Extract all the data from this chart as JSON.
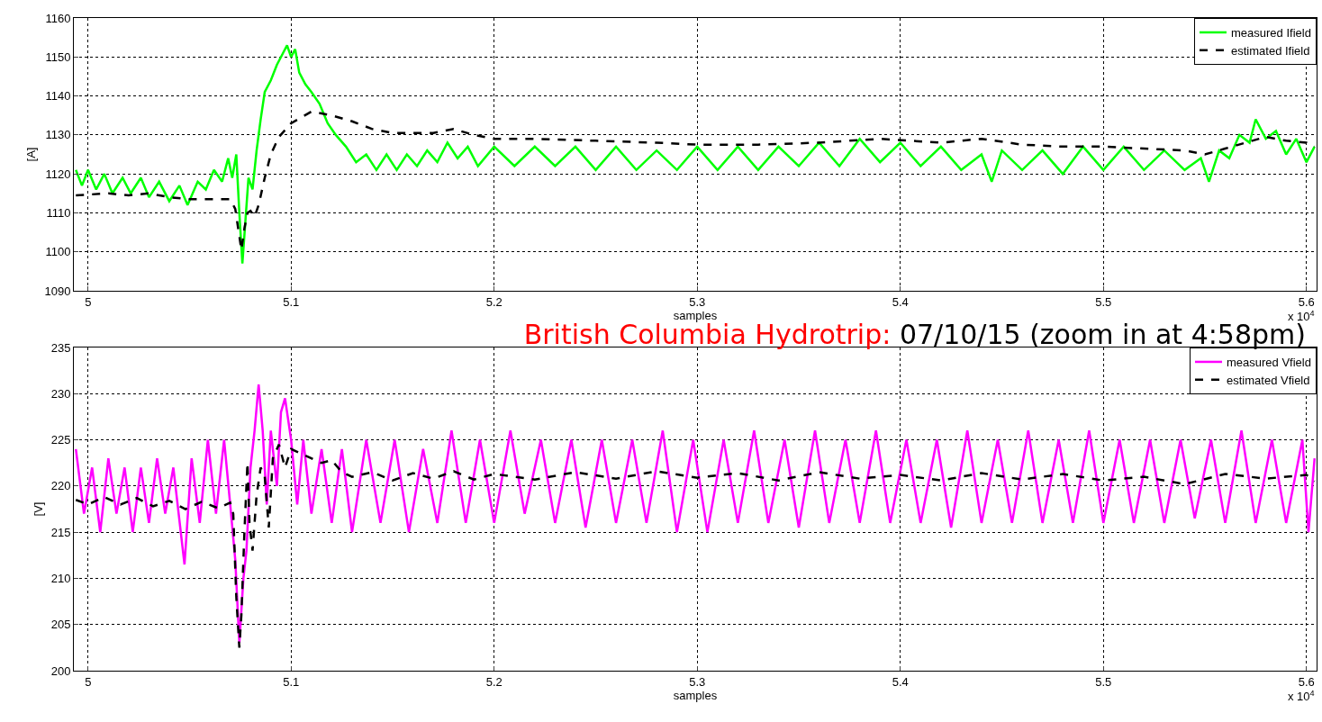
{
  "chart_data": [
    {
      "type": "line",
      "xlabel": "samples",
      "ylabel": "[A]",
      "annotations": [
        "x 10$^{4}$"
      ],
      "xlim": [
        4.993,
        5.605
      ],
      "xticks": [
        5,
        5.1,
        5.2,
        5.3,
        5.4,
        5.5,
        5.6
      ],
      "ylim": [
        1090,
        1160
      ],
      "yticks": [
        1090,
        1100,
        1110,
        1120,
        1130,
        1140,
        1150,
        1160
      ],
      "grid": true,
      "legend": "top right",
      "series": [
        {
          "name": "measured Ifield",
          "color": "#00ff00",
          "line_style": "solid",
          "x": [
            4.994,
            4.997,
            5.0,
            5.004,
            5.008,
            5.012,
            5.017,
            5.021,
            5.026,
            5.03,
            5.035,
            5.04,
            5.045,
            5.049,
            5.054,
            5.058,
            5.062,
            5.066,
            5.069,
            5.071,
            5.073,
            5.0745,
            5.076,
            5.0775,
            5.079,
            5.081,
            5.083,
            5.085,
            5.087,
            5.09,
            5.093,
            5.096,
            5.098,
            5.1,
            5.102,
            5.104,
            5.107,
            5.11,
            5.114,
            5.118,
            5.122,
            5.127,
            5.132,
            5.137,
            5.142,
            5.147,
            5.152,
            5.157,
            5.162,
            5.167,
            5.172,
            5.177,
            5.182,
            5.187,
            5.192,
            5.2,
            5.21,
            5.22,
            5.23,
            5.24,
            5.25,
            5.26,
            5.27,
            5.28,
            5.29,
            5.3,
            5.31,
            5.32,
            5.33,
            5.34,
            5.35,
            5.36,
            5.37,
            5.38,
            5.39,
            5.4,
            5.41,
            5.42,
            5.43,
            5.44,
            5.445,
            5.45,
            5.46,
            5.47,
            5.48,
            5.49,
            5.5,
            5.51,
            5.52,
            5.53,
            5.54,
            5.548,
            5.552,
            5.557,
            5.562,
            5.567,
            5.572,
            5.575,
            5.58,
            5.585,
            5.59,
            5.595,
            5.6,
            5.604
          ],
          "values": [
            1121,
            1117,
            1121,
            1116,
            1120,
            1115,
            1119,
            1115,
            1119,
            1114,
            1118,
            1113,
            1117,
            1112,
            1118,
            1116,
            1121,
            1118,
            1124,
            1119,
            1125,
            1110,
            1097,
            1108,
            1119,
            1116,
            1126,
            1134,
            1141,
            1144,
            1148,
            1151,
            1153,
            1150,
            1152,
            1146,
            1143,
            1141,
            1138,
            1133,
            1130,
            1127,
            1123,
            1125,
            1121,
            1125,
            1121,
            1125,
            1122,
            1126,
            1123,
            1128,
            1124,
            1127,
            1122,
            1127,
            1122,
            1127,
            1122,
            1127,
            1121,
            1127,
            1121,
            1126,
            1121,
            1127,
            1121,
            1127,
            1121,
            1127,
            1122,
            1128,
            1122,
            1129,
            1123,
            1128,
            1122,
            1127,
            1121,
            1125,
            1118,
            1126,
            1121,
            1126,
            1120,
            1127,
            1121,
            1127,
            1121,
            1126,
            1121,
            1124,
            1118,
            1126,
            1124,
            1130,
            1128,
            1134,
            1129,
            1131,
            1125,
            1129,
            1123,
            1127
          ]
        },
        {
          "name": "estimated Ifield",
          "color": "#000000",
          "line_style": "dashed",
          "x": [
            4.994,
            5.01,
            5.02,
            5.03,
            5.04,
            5.05,
            5.06,
            5.07,
            5.0725,
            5.0745,
            5.0755,
            5.077,
            5.0785,
            5.08,
            5.082,
            5.084,
            5.087,
            5.09,
            5.094,
            5.1,
            5.105,
            5.11,
            5.115,
            5.12,
            5.13,
            5.14,
            5.15,
            5.16,
            5.17,
            5.18,
            5.19,
            5.2,
            5.22,
            5.25,
            5.28,
            5.3,
            5.33,
            5.36,
            5.39,
            5.42,
            5.44,
            5.46,
            5.48,
            5.5,
            5.52,
            5.54,
            5.55,
            5.56,
            5.57,
            5.58,
            5.59,
            5.6,
            5.604
          ],
          "values": [
            1114.5,
            1115,
            1114.5,
            1115,
            1114,
            1113.5,
            1113.5,
            1113.5,
            1111,
            1104,
            1100.5,
            1106,
            1110,
            1110.5,
            1109,
            1112,
            1119,
            1125,
            1129.5,
            1133,
            1134.5,
            1136,
            1135.5,
            1135,
            1133.5,
            1131.5,
            1130.5,
            1130.5,
            1130.5,
            1131.5,
            1130,
            1129,
            1129,
            1128.5,
            1128,
            1127.5,
            1127.5,
            1128,
            1129,
            1128,
            1129,
            1127.5,
            1127,
            1127,
            1126.5,
            1126,
            1125,
            1126.5,
            1128,
            1129.5,
            1128.5,
            1128,
            1127
          ]
        }
      ]
    },
    {
      "type": "line",
      "title": "British Columbia Hydrotrip:",
      "subtitle": "07/10/15 (zoom in at 4:58pm)",
      "xlabel": "samples",
      "ylabel": "[V]",
      "annotations": [
        "x 10$^{4}$"
      ],
      "xlim": [
        4.993,
        5.605
      ],
      "xticks": [
        5,
        5.1,
        5.2,
        5.3,
        5.4,
        5.5,
        5.6
      ],
      "ylim": [
        200,
        235
      ],
      "yticks": [
        200,
        205,
        210,
        215,
        220,
        225,
        230,
        235
      ],
      "grid": true,
      "legend": "top right",
      "series": [
        {
          "name": "measured Vfield",
          "color": "#ff00ff",
          "line_style": "solid",
          "x": [
            4.994,
            4.998,
            5.002,
            5.006,
            5.01,
            5.014,
            5.018,
            5.022,
            5.026,
            5.03,
            5.034,
            5.038,
            5.042,
            5.0475,
            5.051,
            5.055,
            5.059,
            5.063,
            5.067,
            5.07,
            5.0725,
            5.0745,
            5.0765,
            5.078,
            5.08,
            5.082,
            5.084,
            5.086,
            5.088,
            5.09,
            5.093,
            5.095,
            5.097,
            5.1,
            5.103,
            5.106,
            5.11,
            5.115,
            5.12,
            5.125,
            5.13,
            5.137,
            5.144,
            5.151,
            5.158,
            5.165,
            5.172,
            5.179,
            5.186,
            5.193,
            5.2,
            5.208,
            5.215,
            5.223,
            5.23,
            5.238,
            5.245,
            5.253,
            5.26,
            5.268,
            5.275,
            5.283,
            5.29,
            5.298,
            5.305,
            5.313,
            5.32,
            5.328,
            5.335,
            5.343,
            5.35,
            5.358,
            5.365,
            5.373,
            5.38,
            5.388,
            5.395,
            5.403,
            5.41,
            5.418,
            5.425,
            5.433,
            5.44,
            5.448,
            5.455,
            5.463,
            5.47,
            5.478,
            5.485,
            5.493,
            5.5,
            5.508,
            5.515,
            5.523,
            5.53,
            5.538,
            5.545,
            5.553,
            5.56,
            5.568,
            5.575,
            5.583,
            5.59,
            5.598,
            5.601,
            5.604
          ],
          "values": [
            224,
            217,
            222,
            215,
            223,
            217,
            222,
            215,
            222,
            216,
            223,
            217,
            222,
            211.5,
            223,
            216,
            225,
            217,
            225,
            218,
            212,
            203,
            210,
            213,
            222,
            226,
            231,
            226,
            218,
            226,
            220,
            228,
            229.5,
            225,
            218,
            225,
            217,
            224,
            216,
            224,
            215,
            225,
            216,
            225,
            215,
            224,
            216,
            226,
            216,
            225,
            216,
            226,
            217,
            225,
            216,
            225,
            215.5,
            225,
            216,
            225,
            216,
            226,
            215,
            225,
            215,
            225,
            216,
            226,
            216,
            225,
            215.5,
            226,
            216,
            225,
            216,
            226,
            216,
            225,
            216,
            225,
            215.5,
            226,
            216,
            225,
            216,
            226,
            216,
            225,
            216,
            226,
            216,
            225,
            216,
            225,
            216,
            225,
            216.5,
            225,
            216,
            226,
            216,
            225,
            216,
            225,
            215,
            223
          ]
        },
        {
          "name": "estimated Vfield",
          "color": "#000000",
          "line_style": "dashed",
          "x": [
            4.994,
            5.0,
            5.008,
            5.016,
            5.024,
            5.032,
            5.04,
            5.048,
            5.056,
            5.064,
            5.07,
            5.0715,
            5.073,
            5.0745,
            5.0755,
            5.077,
            5.0785,
            5.0795,
            5.081,
            5.083,
            5.085,
            5.087,
            5.089,
            5.091,
            5.094,
            5.097,
            5.1,
            5.105,
            5.11,
            5.115,
            5.12,
            5.125,
            5.13,
            5.14,
            5.15,
            5.16,
            5.17,
            5.18,
            5.19,
            5.2,
            5.22,
            5.24,
            5.26,
            5.28,
            5.3,
            5.32,
            5.34,
            5.36,
            5.38,
            5.4,
            5.42,
            5.44,
            5.46,
            5.48,
            5.5,
            5.52,
            5.54,
            5.56,
            5.58,
            5.6,
            5.604
          ],
          "values": [
            218.5,
            218,
            218.8,
            218,
            218.7,
            217.8,
            218.4,
            217.5,
            218.3,
            217.6,
            218.2,
            217,
            208,
            202.5,
            206,
            215,
            222.5,
            216,
            213,
            219,
            222,
            221,
            215.5,
            223,
            224.5,
            222,
            224,
            223.5,
            223,
            222.5,
            222.8,
            221.5,
            221,
            221.5,
            220.6,
            221.4,
            220.8,
            221.6,
            220.7,
            221.3,
            220.7,
            221.5,
            220.8,
            221.6,
            220.9,
            221.4,
            220.6,
            221.5,
            220.8,
            221.2,
            220.6,
            221.4,
            220.7,
            221.3,
            220.6,
            221,
            220.2,
            221.3,
            220.8,
            221.2,
            220.5
          ]
        }
      ]
    }
  ]
}
